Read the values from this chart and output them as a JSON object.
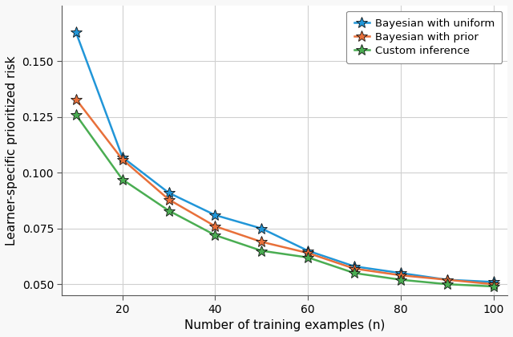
{
  "x": [
    10,
    20,
    30,
    40,
    50,
    60,
    70,
    80,
    90,
    100
  ],
  "bayesian_uniform": [
    0.163,
    0.107,
    0.091,
    0.081,
    0.075,
    0.065,
    0.058,
    0.055,
    0.052,
    0.051
  ],
  "bayesian_prior": [
    0.133,
    0.106,
    0.088,
    0.076,
    0.069,
    0.064,
    0.057,
    0.054,
    0.052,
    0.05
  ],
  "custom_inference": [
    0.126,
    0.097,
    0.083,
    0.072,
    0.065,
    0.062,
    0.055,
    0.052,
    0.05,
    0.049
  ],
  "color_uniform": "#2196d8",
  "color_prior": "#e8703a",
  "color_custom": "#4aad52",
  "label_uniform": "Bayesian with uniform",
  "label_prior": "Bayesian with prior",
  "label_custom": "Custom inference",
  "xlabel": "Number of training examples (n)",
  "ylabel": "Learner-specific prioritized risk",
  "xlim": [
    7,
    103
  ],
  "ylim": [
    0.045,
    0.175
  ],
  "xticks": [
    20,
    40,
    60,
    80,
    100
  ],
  "yticks": [
    0.05,
    0.075,
    0.1,
    0.125,
    0.15
  ],
  "grid_color": "#d0d0d0",
  "linewidth": 1.8,
  "markersize": 10,
  "fig_facecolor": "#f8f8f8",
  "axes_facecolor": "#ffffff"
}
